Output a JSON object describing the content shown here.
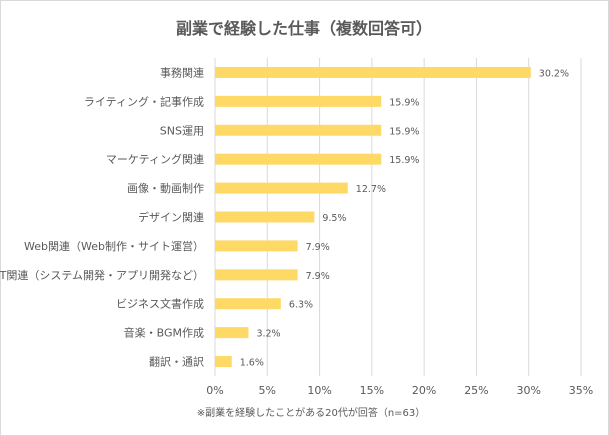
{
  "chart_data": {
    "type": "bar",
    "orientation": "horizontal",
    "title": "副業で経験した仕事（複数回答可）",
    "note": "※副業を経験したことがある20代が回答（n=63）",
    "categories": [
      "事務関連",
      "ライティング・記事作成",
      "SNS運用",
      "マーケティング関連",
      "画像・動画制作",
      "デザイン関連",
      "Web関連（Web制作・サイト運営）",
      "IT関連（システム開発・アプリ開発など）",
      "ビジネス文書作成",
      "音楽・BGM作成",
      "翻訳・通訳"
    ],
    "values": [
      30.2,
      15.9,
      15.9,
      15.9,
      12.7,
      9.5,
      7.9,
      7.9,
      6.3,
      3.2,
      1.6
    ],
    "data_labels": [
      "30.2%",
      "15.9%",
      "15.9%",
      "15.9%",
      "12.7%",
      "9.5%",
      "7.9%",
      "7.9%",
      "6.3%",
      "3.2%",
      "1.6%"
    ],
    "xlim": [
      0,
      35
    ],
    "xticks": [
      0,
      5,
      10,
      15,
      20,
      25,
      30,
      35
    ],
    "xtick_labels": [
      "0%",
      "5%",
      "10%",
      "15%",
      "20%",
      "25%",
      "30%",
      "35%"
    ],
    "grid": true,
    "bar_color": "#ffd966",
    "grid_color": "#d9d9d9"
  }
}
